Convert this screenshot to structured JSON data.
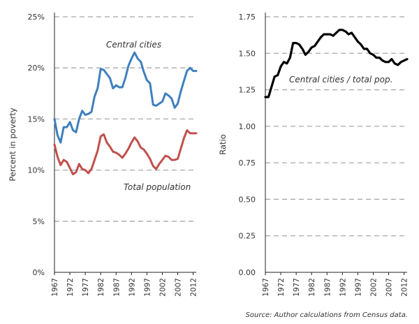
{
  "source": "Source: Author calculations from Census data.",
  "chart_data": [
    {
      "type": "line",
      "ylabel": "Percent in poverty",
      "ylim": [
        0,
        25
      ],
      "yticks": [
        "0%",
        "5%",
        "10%",
        "15%",
        "20%",
        "25%"
      ],
      "xticks": [
        "1967",
        "1972",
        "1977",
        "1982",
        "1987",
        "1992",
        "1997",
        "2002",
        "2007",
        "2012"
      ],
      "grid": true,
      "x": [
        1967,
        1968,
        1969,
        1970,
        1971,
        1972,
        1973,
        1974,
        1975,
        1976,
        1977,
        1978,
        1979,
        1980,
        1981,
        1982,
        1983,
        1984,
        1985,
        1986,
        1987,
        1988,
        1989,
        1990,
        1991,
        1992,
        1993,
        1994,
        1995,
        1996,
        1997,
        1998,
        1999,
        2000,
        2001,
        2002,
        2003,
        2004,
        2005,
        2006,
        2007,
        2008,
        2009,
        2010,
        2011,
        2012,
        2013
      ],
      "series": [
        {
          "name": "Central cities",
          "color": "#3f7fbf",
          "values": [
            15.0,
            13.4,
            12.7,
            14.2,
            14.2,
            14.7,
            13.9,
            13.7,
            15.0,
            15.8,
            15.4,
            15.5,
            15.7,
            17.2,
            18.0,
            19.9,
            19.8,
            19.4,
            19.0,
            18.0,
            18.3,
            18.1,
            18.1,
            19.0,
            20.2,
            20.9,
            21.5,
            20.9,
            20.6,
            19.6,
            18.8,
            18.5,
            16.4,
            16.3,
            16.5,
            16.7,
            17.5,
            17.3,
            17.0,
            16.1,
            16.5,
            17.7,
            18.7,
            19.7,
            20.0,
            19.7,
            19.7
          ]
        },
        {
          "name": "Total population",
          "color": "#c0504d",
          "values": [
            12.5,
            11.3,
            10.5,
            11.0,
            10.8,
            10.2,
            9.6,
            9.8,
            10.6,
            10.1,
            10.0,
            9.7,
            10.1,
            11.0,
            11.9,
            13.3,
            13.5,
            12.7,
            12.3,
            11.8,
            11.7,
            11.5,
            11.2,
            11.6,
            12.1,
            12.7,
            13.2,
            12.8,
            12.2,
            12.0,
            11.6,
            11.1,
            10.4,
            10.1,
            10.6,
            11.0,
            11.4,
            11.3,
            11.0,
            11.0,
            11.1,
            12.1,
            13.1,
            13.9,
            13.6,
            13.6,
            13.6
          ]
        }
      ],
      "annotations": [
        "Central cities",
        "Total population"
      ]
    },
    {
      "type": "line",
      "ylabel": "Ratio",
      "ylim": [
        0.0,
        1.75
      ],
      "yticks": [
        "0.00",
        "0.25",
        "0.50",
        "0.75",
        "1.00",
        "1.25",
        "1.50",
        "1.75"
      ],
      "xticks": [
        "1967",
        "1972",
        "1977",
        "1982",
        "1987",
        "1992",
        "1997",
        "2002",
        "2007",
        "2012"
      ],
      "grid": true,
      "x": [
        1967,
        1968,
        1969,
        1970,
        1971,
        1972,
        1973,
        1974,
        1975,
        1976,
        1977,
        1978,
        1979,
        1980,
        1981,
        1982,
        1983,
        1984,
        1985,
        1986,
        1987,
        1988,
        1989,
        1990,
        1991,
        1992,
        1993,
        1994,
        1995,
        1996,
        1997,
        1998,
        1999,
        2000,
        2001,
        2002,
        2003,
        2004,
        2005,
        2006,
        2007,
        2008,
        2009,
        2010,
        2011,
        2012,
        2013
      ],
      "series": [
        {
          "name": "Central cities / total pop.",
          "color": "#000000",
          "values": [
            1.2,
            1.2,
            1.27,
            1.34,
            1.35,
            1.41,
            1.44,
            1.43,
            1.47,
            1.57,
            1.57,
            1.56,
            1.53,
            1.49,
            1.51,
            1.54,
            1.55,
            1.58,
            1.61,
            1.63,
            1.63,
            1.63,
            1.62,
            1.64,
            1.66,
            1.66,
            1.65,
            1.63,
            1.64,
            1.61,
            1.58,
            1.56,
            1.53,
            1.53,
            1.5,
            1.49,
            1.47,
            1.47,
            1.45,
            1.44,
            1.44,
            1.46,
            1.43,
            1.42,
            1.44,
            1.45,
            1.46
          ]
        }
      ],
      "annotations": [
        "Central cities / total pop."
      ]
    }
  ]
}
